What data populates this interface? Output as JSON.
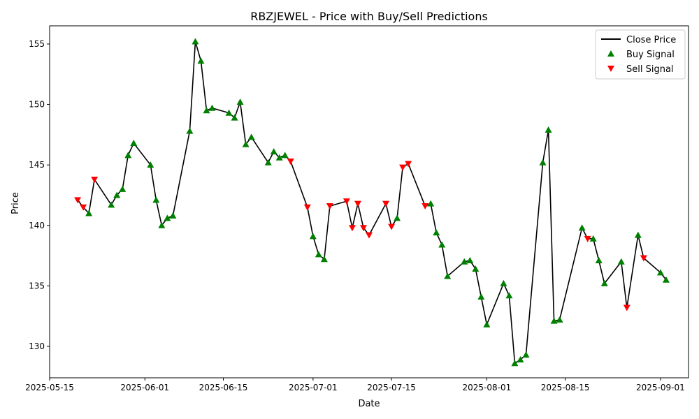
{
  "chart_data": {
    "type": "line",
    "title": "RBZJEWEL - Price with Buy/Sell Predictions",
    "xlabel": "Date",
    "ylabel": "Price",
    "x_range": [
      "2025-05-15",
      "2025-09-06"
    ],
    "ylim": [
      127.4,
      156.5
    ],
    "x_ticks": [
      "2025-05-15",
      "2025-06-01",
      "2025-06-15",
      "2025-07-01",
      "2025-07-15",
      "2025-08-01",
      "2025-08-15",
      "2025-09-01"
    ],
    "y_ticks": [
      130,
      135,
      140,
      145,
      150,
      155
    ],
    "grid": false,
    "legend_position": "upper right",
    "colors": {
      "close": "#000000",
      "buy": "#008000",
      "sell": "#ff0000"
    },
    "legend": {
      "close": "Close Price",
      "buy": "Buy Signal",
      "sell": "Sell Signal"
    },
    "series": [
      {
        "name": "Close Price",
        "points": [
          [
            "2025-05-20",
            142.1
          ],
          [
            "2025-05-21",
            141.5
          ],
          [
            "2025-05-22",
            141.0
          ],
          [
            "2025-05-23",
            143.8
          ],
          [
            "2025-05-26",
            141.7
          ],
          [
            "2025-05-27",
            142.5
          ],
          [
            "2025-05-28",
            143.0
          ],
          [
            "2025-05-29",
            145.8
          ],
          [
            "2025-05-30",
            146.8
          ],
          [
            "2025-06-02",
            145.0
          ],
          [
            "2025-06-03",
            142.1
          ],
          [
            "2025-06-04",
            140.0
          ],
          [
            "2025-06-05",
            140.6
          ],
          [
            "2025-06-06",
            140.8
          ],
          [
            "2025-06-09",
            147.8
          ],
          [
            "2025-06-10",
            155.2
          ],
          [
            "2025-06-11",
            153.6
          ],
          [
            "2025-06-12",
            149.5
          ],
          [
            "2025-06-13",
            149.7
          ],
          [
            "2025-06-16",
            149.3
          ],
          [
            "2025-06-17",
            148.9
          ],
          [
            "2025-06-18",
            150.2
          ],
          [
            "2025-06-19",
            146.7
          ],
          [
            "2025-06-20",
            147.3
          ],
          [
            "2025-06-23",
            145.2
          ],
          [
            "2025-06-24",
            146.1
          ],
          [
            "2025-06-25",
            145.6
          ],
          [
            "2025-06-26",
            145.8
          ],
          [
            "2025-06-27",
            145.3
          ],
          [
            "2025-06-30",
            141.5
          ],
          [
            "2025-07-01",
            139.1
          ],
          [
            "2025-07-02",
            137.6
          ],
          [
            "2025-07-03",
            137.2
          ],
          [
            "2025-07-04",
            141.6
          ],
          [
            "2025-07-07",
            142.0
          ],
          [
            "2025-07-08",
            139.8
          ],
          [
            "2025-07-09",
            141.8
          ],
          [
            "2025-07-10",
            139.8
          ],
          [
            "2025-07-11",
            139.2
          ],
          [
            "2025-07-14",
            141.8
          ],
          [
            "2025-07-15",
            139.9
          ],
          [
            "2025-07-16",
            140.6
          ],
          [
            "2025-07-17",
            144.8
          ],
          [
            "2025-07-18",
            145.1
          ],
          [
            "2025-07-21",
            141.6
          ],
          [
            "2025-07-22",
            141.8
          ],
          [
            "2025-07-23",
            139.4
          ],
          [
            "2025-07-24",
            138.4
          ],
          [
            "2025-07-25",
            135.8
          ],
          [
            "2025-07-28",
            137.0
          ],
          [
            "2025-07-29",
            137.1
          ],
          [
            "2025-07-30",
            136.4
          ],
          [
            "2025-07-31",
            134.1
          ],
          [
            "2025-08-01",
            131.8
          ],
          [
            "2025-08-04",
            135.2
          ],
          [
            "2025-08-05",
            134.2
          ],
          [
            "2025-08-06",
            128.6
          ],
          [
            "2025-08-07",
            128.9
          ],
          [
            "2025-08-08",
            129.3
          ],
          [
            "2025-08-11",
            145.2
          ],
          [
            "2025-08-12",
            147.9
          ],
          [
            "2025-08-13",
            132.1
          ],
          [
            "2025-08-14",
            132.2
          ],
          [
            "2025-08-18",
            139.8
          ],
          [
            "2025-08-19",
            138.9
          ],
          [
            "2025-08-20",
            138.9
          ],
          [
            "2025-08-21",
            137.1
          ],
          [
            "2025-08-22",
            135.2
          ],
          [
            "2025-08-25",
            137.0
          ],
          [
            "2025-08-26",
            133.2
          ],
          [
            "2025-08-28",
            139.2
          ],
          [
            "2025-08-29",
            137.3
          ],
          [
            "2025-09-01",
            136.1
          ],
          [
            "2025-09-02",
            135.5
          ]
        ]
      },
      {
        "name": "Buy Signal",
        "marker": "triangle-up",
        "points": [
          [
            "2025-05-22",
            141.0
          ],
          [
            "2025-05-26",
            141.7
          ],
          [
            "2025-05-27",
            142.5
          ],
          [
            "2025-05-28",
            143.0
          ],
          [
            "2025-05-29",
            145.8
          ],
          [
            "2025-05-30",
            146.8
          ],
          [
            "2025-06-02",
            145.0
          ],
          [
            "2025-06-03",
            142.1
          ],
          [
            "2025-06-04",
            140.0
          ],
          [
            "2025-06-05",
            140.6
          ],
          [
            "2025-06-06",
            140.8
          ],
          [
            "2025-06-09",
            147.8
          ],
          [
            "2025-06-10",
            155.2
          ],
          [
            "2025-06-11",
            153.6
          ],
          [
            "2025-06-12",
            149.5
          ],
          [
            "2025-06-13",
            149.7
          ],
          [
            "2025-06-16",
            149.3
          ],
          [
            "2025-06-17",
            148.9
          ],
          [
            "2025-06-18",
            150.2
          ],
          [
            "2025-06-19",
            146.7
          ],
          [
            "2025-06-20",
            147.3
          ],
          [
            "2025-06-23",
            145.2
          ],
          [
            "2025-06-24",
            146.1
          ],
          [
            "2025-06-25",
            145.6
          ],
          [
            "2025-06-26",
            145.8
          ],
          [
            "2025-07-01",
            139.1
          ],
          [
            "2025-07-02",
            137.6
          ],
          [
            "2025-07-03",
            137.2
          ],
          [
            "2025-07-16",
            140.6
          ],
          [
            "2025-07-22",
            141.8
          ],
          [
            "2025-07-23",
            139.4
          ],
          [
            "2025-07-24",
            138.4
          ],
          [
            "2025-07-25",
            135.8
          ],
          [
            "2025-07-28",
            137.0
          ],
          [
            "2025-07-29",
            137.1
          ],
          [
            "2025-07-30",
            136.4
          ],
          [
            "2025-07-31",
            134.1
          ],
          [
            "2025-08-01",
            131.8
          ],
          [
            "2025-08-04",
            135.2
          ],
          [
            "2025-08-05",
            134.2
          ],
          [
            "2025-08-06",
            128.6
          ],
          [
            "2025-08-07",
            128.9
          ],
          [
            "2025-08-08",
            129.3
          ],
          [
            "2025-08-11",
            145.2
          ],
          [
            "2025-08-12",
            147.9
          ],
          [
            "2025-08-13",
            132.1
          ],
          [
            "2025-08-14",
            132.2
          ],
          [
            "2025-08-18",
            139.8
          ],
          [
            "2025-08-20",
            138.9
          ],
          [
            "2025-08-21",
            137.1
          ],
          [
            "2025-08-22",
            135.2
          ],
          [
            "2025-08-25",
            137.0
          ],
          [
            "2025-08-28",
            139.2
          ],
          [
            "2025-09-01",
            136.1
          ],
          [
            "2025-09-02",
            135.5
          ]
        ]
      },
      {
        "name": "Sell Signal",
        "marker": "triangle-down",
        "points": [
          [
            "2025-05-20",
            142.1
          ],
          [
            "2025-05-21",
            141.5
          ],
          [
            "2025-05-23",
            143.8
          ],
          [
            "2025-06-27",
            145.3
          ],
          [
            "2025-06-30",
            141.5
          ],
          [
            "2025-07-04",
            141.6
          ],
          [
            "2025-07-07",
            142.0
          ],
          [
            "2025-07-08",
            139.8
          ],
          [
            "2025-07-09",
            141.8
          ],
          [
            "2025-07-10",
            139.8
          ],
          [
            "2025-07-11",
            139.2
          ],
          [
            "2025-07-14",
            141.8
          ],
          [
            "2025-07-15",
            139.9
          ],
          [
            "2025-07-17",
            144.8
          ],
          [
            "2025-07-18",
            145.1
          ],
          [
            "2025-07-21",
            141.6
          ],
          [
            "2025-08-19",
            138.9
          ],
          [
            "2025-08-26",
            133.2
          ],
          [
            "2025-08-29",
            137.3
          ]
        ]
      }
    ]
  }
}
